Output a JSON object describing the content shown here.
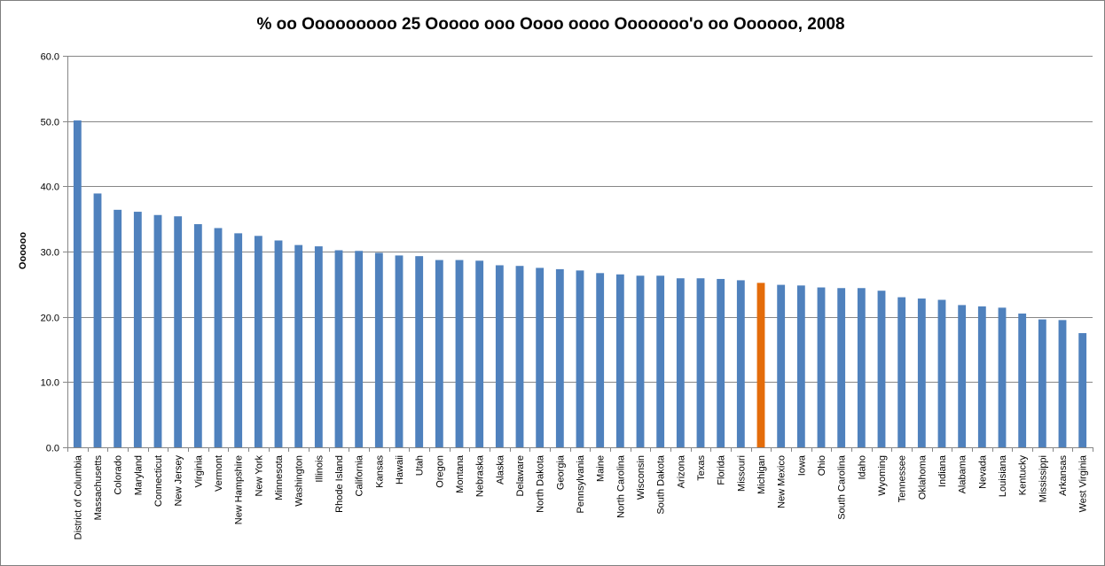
{
  "chart_data": {
    "type": "bar",
    "title": "% оо Ооооооооо 25 Ооооо ооо Оооо оооо Ооооооо'о оо Оооооо, 2008",
    "xlabel": "",
    "ylabel": "Оооооо",
    "ylim": [
      0,
      60
    ],
    "ytick_step": 10,
    "yticks": [
      "0.0",
      "10.0",
      "20.0",
      "30.0",
      "40.0",
      "50.0",
      "60.0"
    ],
    "grid": true,
    "legend": "none",
    "colors": {
      "default": "#4F81BD",
      "highlight": "#E46C0A",
      "grid": "#868686",
      "axis": "#868686",
      "border": "#7F7F7F"
    },
    "highlight_category": "Michigan",
    "categories": [
      "District of Columbia",
      "Massachusetts",
      "Colorado",
      "Maryland",
      "Connecticut",
      "New Jersey",
      "Virginia",
      "Vermont",
      "New Hampshire",
      "New York",
      "Minnesota",
      "Washington",
      "Illinois",
      "Rhode Island",
      "California",
      "Kansas",
      "Hawaii",
      "Utah",
      "Oregon",
      "Montana",
      "Nebraska",
      "Alaska",
      "Delaware",
      "North Dakota",
      "Georgia",
      "Pennsylvania",
      "Maine",
      "North Carolina",
      "Wisconsin",
      "South Dakota",
      "Arizona",
      "Texas",
      "Florida",
      "Missouri",
      "Michigan",
      "New Mexico",
      "Iowa",
      "Ohio",
      "South Carolina",
      "Idaho",
      "Wyoming",
      "Tennessee",
      "Oklahoma",
      "Indiana",
      "Alabama",
      "Nevada",
      "Louisiana",
      "Kentucky",
      "Mississippi",
      "Arkansas",
      "West Virginia"
    ],
    "values": [
      50.1,
      38.9,
      36.4,
      36.1,
      35.6,
      35.4,
      34.2,
      33.6,
      32.8,
      32.4,
      31.7,
      31.0,
      30.8,
      30.2,
      30.1,
      29.8,
      29.4,
      29.3,
      28.7,
      28.7,
      28.6,
      27.9,
      27.8,
      27.5,
      27.3,
      27.1,
      26.7,
      26.5,
      26.3,
      26.3,
      25.9,
      25.9,
      25.8,
      25.6,
      25.2,
      24.9,
      24.8,
      24.5,
      24.4,
      24.4,
      24.0,
      23.0,
      22.8,
      22.6,
      21.8,
      21.6,
      21.4,
      20.5,
      19.6,
      19.5,
      17.5
    ]
  }
}
